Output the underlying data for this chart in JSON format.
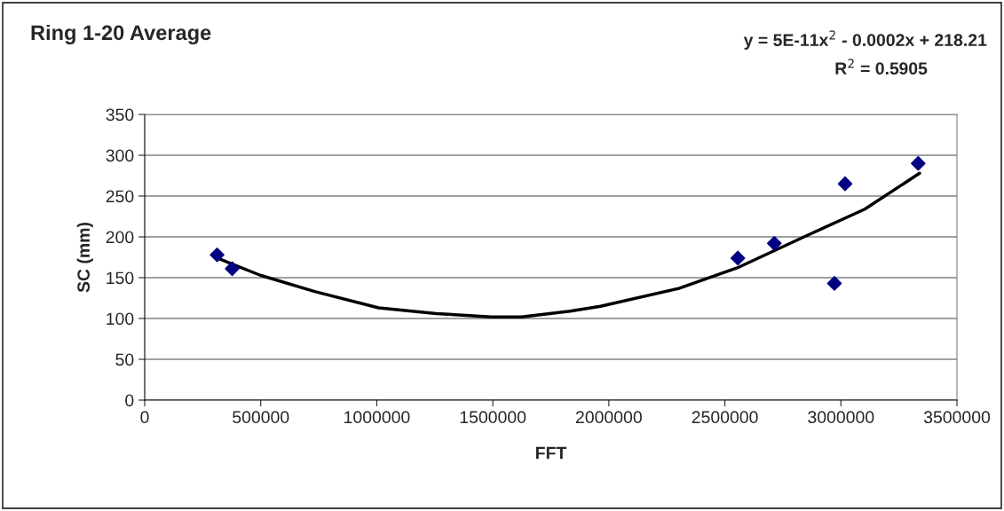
{
  "chart_data": {
    "type": "scatter",
    "title": "Ring 1-20 Average",
    "xlabel": "FFT",
    "ylabel": "SC (mm)",
    "annotations": [
      "y = 5E-11x$^{2}$ - 0.0002x + 218.21",
      "R$^{2}$ = 0.5905"
    ],
    "x": [
      312000,
      377000,
      2556000,
      2713000,
      2972000,
      3018000,
      3333000
    ],
    "series": [
      {
        "color": "#000080",
        "marker": "diamond",
        "values": [
          178,
          161,
          174,
          192,
          143,
          265,
          290
        ]
      },
      {
        "type": "line",
        "color": "#000000",
        "marker": "none",
        "line_style": "solid",
        "x": [
          313000,
          498000,
          733000,
          1008000,
          1257000,
          1493000,
          1624000,
          1833000,
          1964000,
          2304000,
          2553000,
          2841000,
          3103000,
          3339000
        ],
        "values": [
          174,
          153,
          133,
          113,
          106,
          102,
          102,
          109,
          115,
          137,
          162,
          200,
          234,
          278
        ]
      }
    ],
    "xlim": [
      0,
      3500000
    ],
    "xticks": [
      0,
      500000,
      1000000,
      1500000,
      2000000,
      2500000,
      3000000,
      3500000
    ],
    "ylim": [
      0,
      350
    ],
    "yticks": [
      0,
      50,
      100,
      150,
      200,
      250,
      300,
      350
    ],
    "grid": "y"
  }
}
